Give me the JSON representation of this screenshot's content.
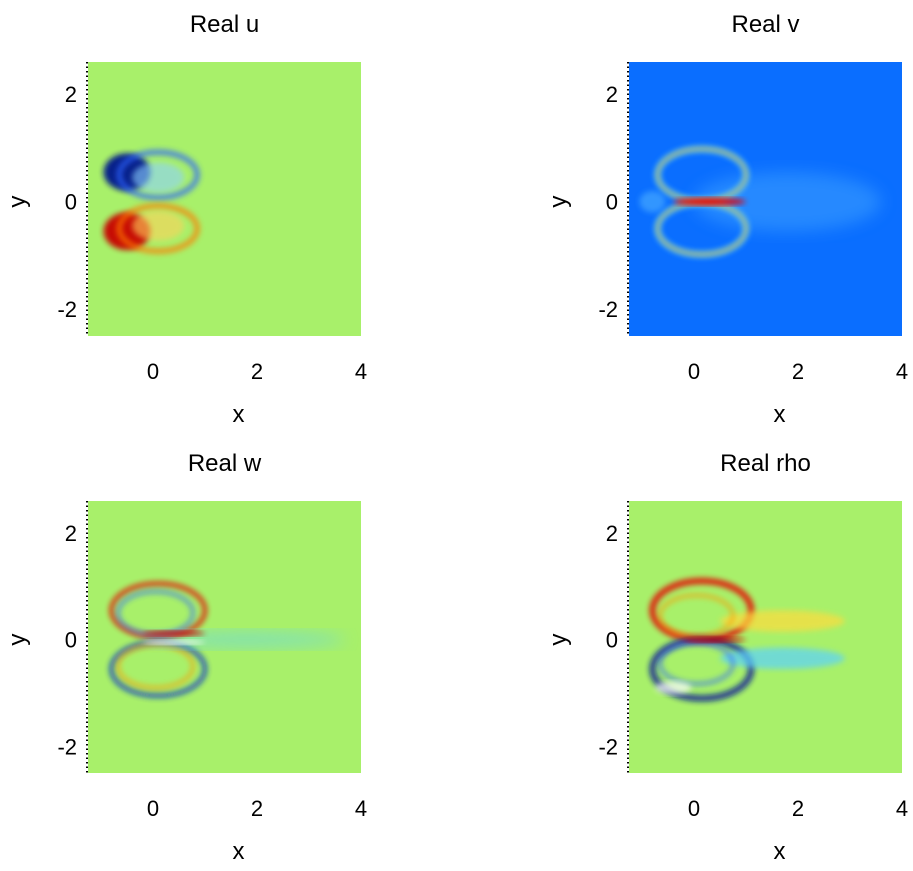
{
  "chart_data": [
    {
      "type": "heatmap",
      "title": "Real u",
      "xlabel": "x",
      "ylabel": "y",
      "xlim": [
        -1.25,
        4
      ],
      "ylim": [
        -2.5,
        2.6
      ],
      "xticks": [
        0,
        2,
        4
      ],
      "yticks": [
        2,
        0,
        -2
      ],
      "xtick_labels": [
        "0",
        "2",
        "4"
      ],
      "ytick_labels": [
        "2",
        "0",
        "-2"
      ],
      "colormap": "jet",
      "background": "#a8f06a",
      "features": [
        {
          "kind": "blob",
          "x": -0.5,
          "y": 0.55,
          "rx": 0.45,
          "ry": 0.35,
          "color": "#00148c",
          "opacity": 0.95
        },
        {
          "kind": "blob",
          "x": -0.5,
          "y": -0.55,
          "rx": 0.45,
          "ry": 0.35,
          "color": "#c80000",
          "opacity": 0.95
        },
        {
          "kind": "ring",
          "x": 0.1,
          "y": 0.5,
          "rx": 0.75,
          "ry": 0.42,
          "color": "#2d64ff",
          "width": 5,
          "opacity": 0.8
        },
        {
          "kind": "ring",
          "x": 0.1,
          "y": -0.5,
          "rx": 0.75,
          "ry": 0.42,
          "color": "#ff7a00",
          "width": 5,
          "opacity": 0.8
        },
        {
          "kind": "blob",
          "x": 0.1,
          "y": 0.45,
          "rx": 0.5,
          "ry": 0.28,
          "color": "#8cd2ff",
          "opacity": 0.6
        },
        {
          "kind": "blob",
          "x": 0.1,
          "y": -0.45,
          "rx": 0.5,
          "ry": 0.28,
          "color": "#ffd25a",
          "opacity": 0.6
        }
      ]
    },
    {
      "type": "heatmap",
      "title": "Real v",
      "xlabel": "x",
      "ylabel": "y",
      "xlim": [
        -1.25,
        4
      ],
      "ylim": [
        -2.5,
        2.6
      ],
      "xticks": [
        0,
        2,
        4
      ],
      "yticks": [
        2,
        0,
        -2
      ],
      "xtick_labels": [
        "0",
        "2",
        "4"
      ],
      "ytick_labels": [
        "2",
        "0",
        "-2"
      ],
      "colormap": "jet",
      "background": "#0a6eff",
      "features": [
        {
          "kind": "blob",
          "x": 1.8,
          "y": 0.0,
          "rx": 1.8,
          "ry": 0.55,
          "color": "#3ca0ff",
          "opacity": 0.55
        },
        {
          "kind": "ring",
          "x": 0.15,
          "y": 0.5,
          "rx": 0.85,
          "ry": 0.48,
          "color": "#5ad2ff",
          "width": 6,
          "opacity": 0.9
        },
        {
          "kind": "ring",
          "x": 0.15,
          "y": -0.5,
          "rx": 0.85,
          "ry": 0.48,
          "color": "#5ad2ff",
          "width": 6,
          "opacity": 0.9
        },
        {
          "kind": "ring",
          "x": 0.15,
          "y": 0.5,
          "rx": 0.85,
          "ry": 0.48,
          "color": "#ffa000",
          "width": 2,
          "opacity": 0.9
        },
        {
          "kind": "ring",
          "x": 0.15,
          "y": -0.5,
          "rx": 0.85,
          "ry": 0.48,
          "color": "#ffa000",
          "width": 2,
          "opacity": 0.9
        },
        {
          "kind": "blob",
          "x": 0.3,
          "y": 0.0,
          "rx": 0.7,
          "ry": 0.07,
          "color": "#e60000",
          "opacity": 0.95
        },
        {
          "kind": "blob",
          "x": -0.8,
          "y": 0.0,
          "rx": 0.25,
          "ry": 0.2,
          "color": "#3ca0ff",
          "opacity": 0.8
        }
      ]
    },
    {
      "type": "heatmap",
      "title": "Real w",
      "xlabel": "x",
      "ylabel": "y",
      "xlim": [
        -1.25,
        4
      ],
      "ylim": [
        -2.5,
        2.6
      ],
      "xticks": [
        0,
        2,
        4
      ],
      "yticks": [
        2,
        0,
        -2
      ],
      "xtick_labels": [
        "0",
        "2",
        "4"
      ],
      "ytick_labels": [
        "2",
        "0",
        "-2"
      ],
      "colormap": "jet",
      "background": "#a8f06a",
      "features": [
        {
          "kind": "ring",
          "x": 0.1,
          "y": 0.55,
          "rx": 0.9,
          "ry": 0.5,
          "color": "#e60000",
          "width": 4,
          "opacity": 0.9
        },
        {
          "kind": "ring",
          "x": 0.1,
          "y": -0.55,
          "rx": 0.9,
          "ry": 0.5,
          "color": "#0a32c8",
          "width": 4,
          "opacity": 0.9
        },
        {
          "kind": "ring",
          "x": 0.05,
          "y": 0.5,
          "rx": 0.72,
          "ry": 0.4,
          "color": "#2d64ff",
          "width": 3,
          "opacity": 0.8
        },
        {
          "kind": "ring",
          "x": 0.05,
          "y": -0.5,
          "rx": 0.72,
          "ry": 0.4,
          "color": "#ff9600",
          "width": 3,
          "opacity": 0.8
        },
        {
          "kind": "blob",
          "x": 1.8,
          "y": 0.0,
          "rx": 1.9,
          "ry": 0.15,
          "color": "#5ad2ff",
          "opacity": 0.5
        },
        {
          "kind": "blob",
          "x": 0.4,
          "y": 0.12,
          "rx": 0.6,
          "ry": 0.05,
          "color": "#c80000",
          "opacity": 0.9
        },
        {
          "kind": "blob",
          "x": 0.4,
          "y": -0.05,
          "rx": 0.6,
          "ry": 0.04,
          "color": "#ffffff",
          "opacity": 0.9
        }
      ]
    },
    {
      "type": "heatmap",
      "title": "Real rho",
      "xlabel": "x",
      "ylabel": "y",
      "xlim": [
        -1.25,
        4
      ],
      "ylim": [
        -2.5,
        2.6
      ],
      "xticks": [
        0,
        2,
        4
      ],
      "yticks": [
        2,
        0,
        -2
      ],
      "xtick_labels": [
        "0",
        "2",
        "4"
      ],
      "ytick_labels": [
        "2",
        "0",
        "-2"
      ],
      "colormap": "jet",
      "background": "#a8f06a",
      "features": [
        {
          "kind": "ring",
          "x": 0.15,
          "y": 0.55,
          "rx": 0.95,
          "ry": 0.55,
          "color": "#e60000",
          "width": 6,
          "opacity": 0.9
        },
        {
          "kind": "ring",
          "x": 0.15,
          "y": -0.55,
          "rx": 0.95,
          "ry": 0.55,
          "color": "#0a1e96",
          "width": 6,
          "opacity": 0.9
        },
        {
          "kind": "blob",
          "x": 1.7,
          "y": 0.35,
          "rx": 1.2,
          "ry": 0.2,
          "color": "#ffdc3c",
          "opacity": 0.7
        },
        {
          "kind": "blob",
          "x": 1.7,
          "y": -0.35,
          "rx": 1.2,
          "ry": 0.2,
          "color": "#5ad2ff",
          "opacity": 0.7
        },
        {
          "kind": "ring",
          "x": 0.05,
          "y": 0.45,
          "rx": 0.7,
          "ry": 0.38,
          "color": "#ff9600",
          "width": 3,
          "opacity": 0.8
        },
        {
          "kind": "ring",
          "x": 0.05,
          "y": -0.45,
          "rx": 0.7,
          "ry": 0.38,
          "color": "#2d64ff",
          "width": 3,
          "opacity": 0.8
        },
        {
          "kind": "blob",
          "x": 0.4,
          "y": 0.0,
          "rx": 0.6,
          "ry": 0.05,
          "color": "#c80000",
          "opacity": 0.85
        },
        {
          "kind": "blob",
          "x": -0.4,
          "y": -0.9,
          "rx": 0.35,
          "ry": 0.12,
          "color": "#ffffff",
          "opacity": 0.7
        }
      ]
    }
  ]
}
